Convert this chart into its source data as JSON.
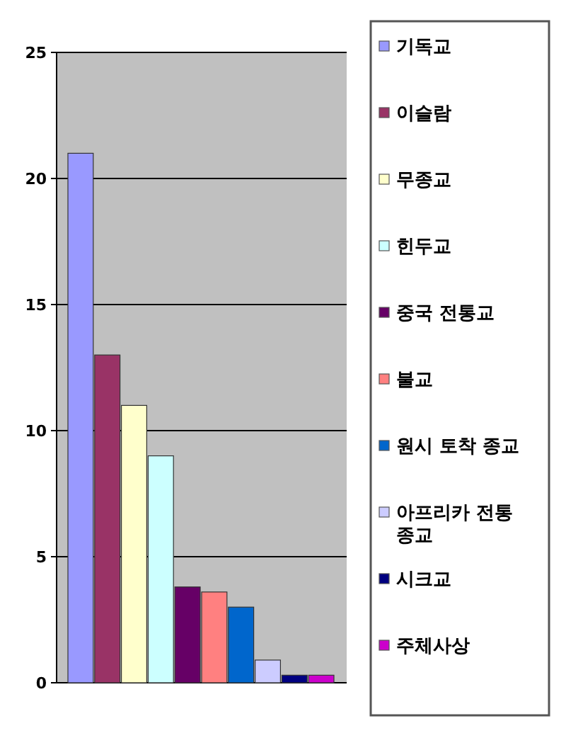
{
  "chart_data": {
    "type": "bar",
    "categories": [
      null
    ],
    "series": [
      {
        "name": "기독교",
        "color": "#9999ff",
        "values": [
          21
        ]
      },
      {
        "name": "이슬람",
        "color": "#993366",
        "values": [
          13
        ]
      },
      {
        "name": "무종교",
        "color": "#ffffcc",
        "values": [
          11
        ]
      },
      {
        "name": "힌두교",
        "color": "#ccffff",
        "values": [
          9
        ]
      },
      {
        "name": "중국 전통교",
        "color": "#660066",
        "values": [
          3.8
        ]
      },
      {
        "name": "불교",
        "color": "#ff8080",
        "values": [
          3.6
        ]
      },
      {
        "name": "원시 토착 종교",
        "color": "#0066cc",
        "values": [
          3
        ]
      },
      {
        "name": "아프리카 전통 종교",
        "color": "#ccccff",
        "values": [
          0.9
        ]
      },
      {
        "name": "시크교",
        "color": "#000080",
        "values": [
          0.3
        ]
      },
      {
        "name": "주체사상",
        "color": "#cc00cc",
        "values": [
          0.3
        ]
      }
    ],
    "ylim": [
      0,
      25
    ],
    "yticks": [
      0,
      5,
      10,
      15,
      20,
      25
    ],
    "grid": "y",
    "legend": "right"
  }
}
